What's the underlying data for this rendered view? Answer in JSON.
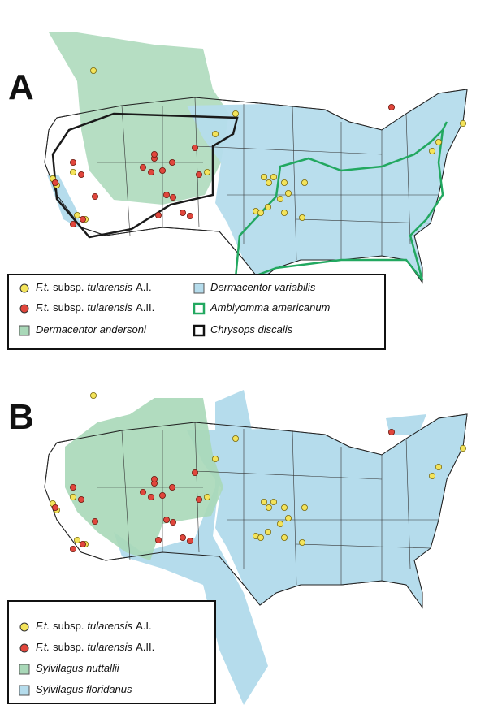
{
  "panels": [
    {
      "label": "A",
      "legend": [
        {
          "genus": "F.t.",
          "rank": "subsp.",
          "epithet": "tularensis",
          "clade": "A.I."
        },
        {
          "genus": "F.t.",
          "rank": "subsp.",
          "epithet": "tularensis",
          "clade": "A.II."
        },
        {
          "name": "Dermacentor andersoni"
        },
        {
          "name": "Dermacentor variabilis"
        },
        {
          "name": "Amblyomma americanum"
        },
        {
          "name": "Chrysops discalis"
        }
      ]
    },
    {
      "label": "B",
      "legend": [
        {
          "genus": "F.t.",
          "rank": "subsp.",
          "epithet": "tularensis",
          "clade": "A.I."
        },
        {
          "genus": "F.t.",
          "rank": "subsp.",
          "epithet": "tularensis",
          "clade": "A.II."
        },
        {
          "name": "Sylvilagus nuttallii"
        },
        {
          "name": "Sylvilagus floridanus"
        }
      ]
    }
  ]
}
